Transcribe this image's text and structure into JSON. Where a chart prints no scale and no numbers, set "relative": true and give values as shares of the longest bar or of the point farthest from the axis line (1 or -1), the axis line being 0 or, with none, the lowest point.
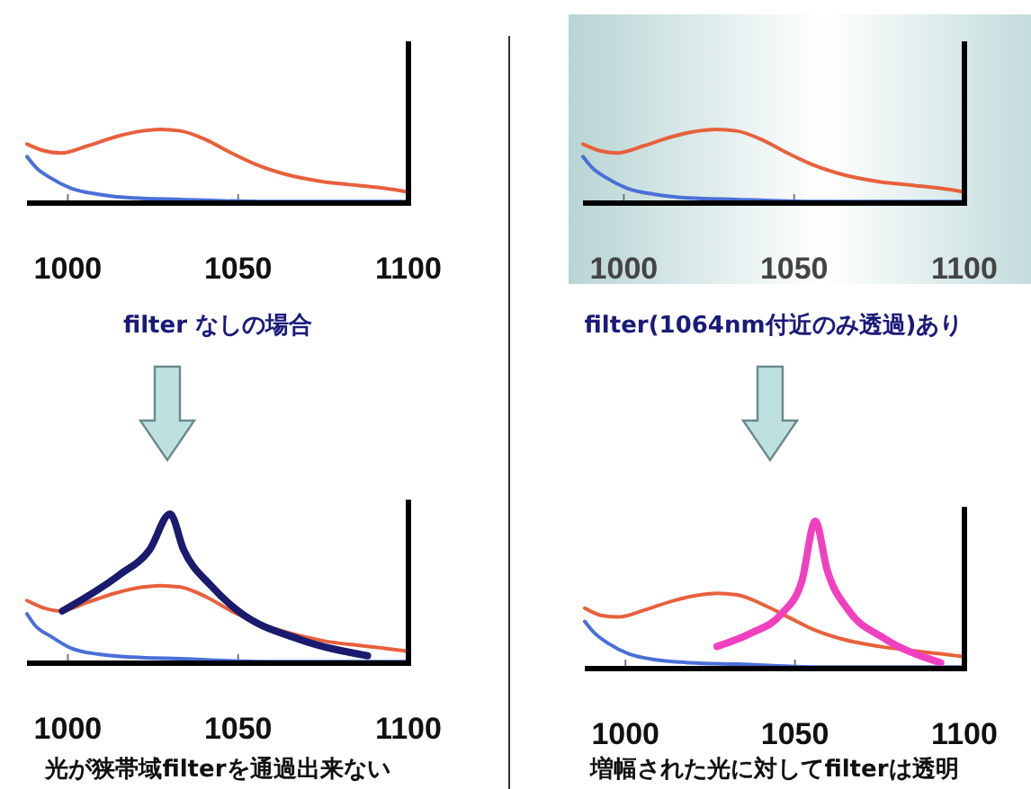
{
  "chart_data": [
    {
      "type": "line",
      "relative": true,
      "xlim": [
        988,
        1100
      ],
      "xticks": [
        1000,
        1050,
        1100
      ],
      "xlabel": "filter なしの場合",
      "series": [
        {
          "color": "#e8603c",
          "x": [
            988,
            993,
            998,
            1006,
            1014,
            1022,
            1027,
            1033,
            1041,
            1048,
            1056,
            1064,
            1075,
            1085,
            1093,
            1100
          ],
          "values": [
            0.8,
            0.71,
            0.68,
            0.78,
            0.9,
            0.98,
            1,
            0.98,
            0.85,
            0.68,
            0.51,
            0.39,
            0.29,
            0.24,
            0.2,
            0.15
          ]
        },
        {
          "color": "#4a6fd8",
          "x": [
            988,
            990.5,
            995,
            1001,
            1009,
            1019,
            1033,
            1059,
            1100
          ],
          "values": [
            0.63,
            0.49,
            0.34,
            0.2,
            0.12,
            0.07,
            0.05,
            0.02,
            0.02
          ]
        }
      ]
    },
    {
      "type": "line",
      "relative": true,
      "xlim": [
        988,
        1100
      ],
      "xticks": [
        1000,
        1050,
        1100
      ],
      "xlabel": "filter(1064nm付近のみ透過)あり",
      "series": [
        {
          "color": "#e8603c",
          "x": [
            988,
            993,
            998,
            1006,
            1014,
            1022,
            1027,
            1033,
            1041,
            1048,
            1056,
            1064,
            1075,
            1085,
            1093,
            1100
          ],
          "values": [
            0.8,
            0.71,
            0.68,
            0.78,
            0.9,
            0.98,
            1,
            0.98,
            0.85,
            0.68,
            0.51,
            0.39,
            0.29,
            0.24,
            0.2,
            0.15
          ]
        },
        {
          "color": "#4a6fd8",
          "x": [
            988,
            990.5,
            995,
            1001,
            1009,
            1019,
            1033,
            1059,
            1100
          ],
          "values": [
            0.63,
            0.49,
            0.34,
            0.2,
            0.12,
            0.07,
            0.05,
            0.02,
            0.02
          ]
        }
      ]
    },
    {
      "type": "line",
      "relative": true,
      "xlim": [
        988,
        1100
      ],
      "xticks": [
        1000,
        1050,
        1100
      ],
      "xlabel": "光が狭帯域filterを通過出来ない",
      "series": [
        {
          "color": "#e8603c",
          "x": [
            988,
            993,
            998,
            1006,
            1014,
            1022,
            1027,
            1033,
            1041,
            1048,
            1056,
            1064,
            1075,
            1085,
            1093,
            1100
          ],
          "values": [
            0.42,
            0.37,
            0.35,
            0.41,
            0.47,
            0.51,
            0.52,
            0.51,
            0.44,
            0.35,
            null,
            null,
            0.15,
            0.12,
            0.1,
            0.08
          ]
        },
        {
          "color": "#4a6fd8",
          "x": [
            988,
            990.5,
            995,
            1001,
            1009,
            1019,
            1033,
            1059,
            1100
          ],
          "values": [
            0.33,
            0.25,
            0.18,
            0.1,
            0.06,
            0.04,
            0.03,
            0.01,
            0.01
          ]
        },
        {
          "color": "#1a1a6e",
          "x": [
            998.4,
            1015,
            1024,
            1030,
            1034,
            1042,
            1050,
            1068,
            1088
          ],
          "values": [
            0.35,
            0.59,
            0.76,
            1,
            0.76,
            0.52,
            0.35,
            0.16,
            0.05
          ]
        }
      ]
    },
    {
      "type": "line",
      "relative": true,
      "xlim": [
        988,
        1100
      ],
      "xticks": [
        1000,
        1050,
        1100
      ],
      "xlabel": "増幅された光に対してfilterは透明",
      "series": [
        {
          "color": "#e8603c",
          "x": [
            988,
            993,
            998,
            1006,
            1014,
            1022,
            1027,
            1033,
            1041,
            1048,
            1056,
            1064,
            1075,
            1085,
            1093,
            1100
          ],
          "values": [
            0.41,
            0.36,
            0.35,
            0.4,
            0.46,
            0.5,
            0.51,
            0.5,
            0.43,
            0.35,
            0.26,
            0.2,
            0.15,
            0.12,
            0.1,
            0.08
          ]
        },
        {
          "color": "#4a6fd8",
          "x": [
            988,
            990.5,
            995,
            1001,
            1009,
            1019,
            1033,
            1059,
            1100
          ],
          "values": [
            0.32,
            0.25,
            0.17,
            0.1,
            0.06,
            0.04,
            0.03,
            0.01,
            0.01
          ]
        },
        {
          "color": "#f040c0",
          "x": [
            1027,
            1037,
            1046,
            1052,
            1056,
            1059.5,
            1066,
            1076,
            1093
          ],
          "values": [
            0.15,
            0.24,
            0.37,
            0.59,
            1,
            0.67,
            0.39,
            0.21,
            0.04
          ]
        }
      ]
    }
  ]
}
